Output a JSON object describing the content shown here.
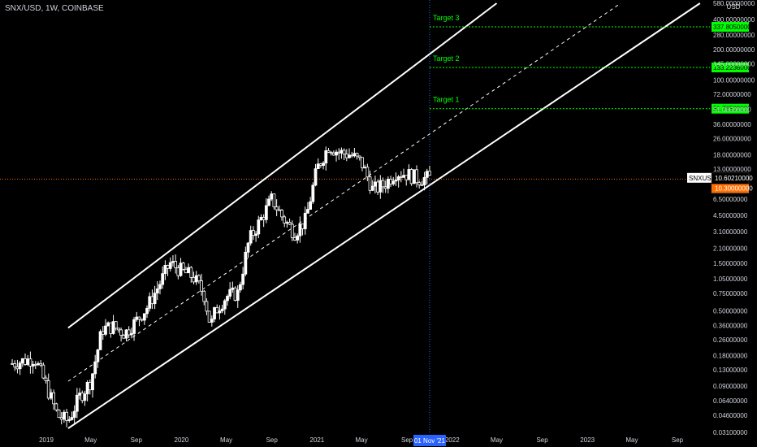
{
  "header": {
    "symbol_line": "SNX/USD, 1W, COINBASE"
  },
  "colors": {
    "background": "#000000",
    "candle": "#ffffff",
    "target": "#00ff00",
    "price_line": "#ff6d00",
    "cursor_line": "#2962ff",
    "axis_text": "#d1d4dc",
    "current_badge": "#ff6d00"
  },
  "chart_data": {
    "type": "candlestick",
    "y_scale": "log",
    "currency_label": "USD",
    "y_ticks": [
      "580.00000000",
      "400.00000000",
      "280.00000000",
      "200.00000000",
      "145.00000000",
      "100.00000000",
      "72.00000000",
      "51.00000000",
      "36.00000000",
      "26.00000000",
      "18.00000000",
      "13.00000000",
      "9.00000000",
      "6.50000000",
      "4.50000000",
      "3.10000000",
      "2.10000000",
      "1.50000000",
      "1.05000000",
      "0.75000000",
      "0.50000000",
      "0.36000000",
      "0.26000000",
      "0.18000000",
      "0.13000000",
      "0.09000000",
      "0.06400000",
      "0.04600000",
      "0.03100000"
    ],
    "y_tick_values": [
      580,
      400,
      280,
      200,
      145,
      100,
      72,
      51,
      36,
      26,
      18,
      13,
      9,
      6.5,
      4.5,
      3.1,
      2.1,
      1.5,
      1.05,
      0.75,
      0.5,
      0.36,
      0.26,
      0.18,
      0.13,
      0.09,
      0.064,
      0.046,
      0.031
    ],
    "x_ticks": [
      "2019",
      "May",
      "Sep",
      "2020",
      "May",
      "Sep",
      "2021",
      "May",
      "Sep",
      "2022",
      "May",
      "Sep",
      "2023",
      "May",
      "Sep"
    ],
    "x_tick_dates": [
      "2019-01-01",
      "2019-05-01",
      "2019-09-01",
      "2020-01-01",
      "2020-05-01",
      "2020-09-01",
      "2021-01-01",
      "2021-05-01",
      "2021-09-01",
      "2022-01-01",
      "2022-05-01",
      "2022-09-01",
      "2023-01-01",
      "2023-05-01",
      "2023-09-01"
    ],
    "cursor_date_label": "01 Nov '21",
    "cursor_date": "2021-11-01",
    "targets": [
      {
        "label": "Target 3",
        "price": 337.805,
        "price_label": "337.80500000"
      },
      {
        "label": "Target 2",
        "price": 133.2236,
        "price_label": "133.22360000"
      },
      {
        "label": "Target 1",
        "price": 51.765,
        "price_label": "51.76500000"
      }
    ],
    "current": {
      "symbol": "SNXUSD",
      "price": 10.6021,
      "price_label": "10.60210000",
      "countdown": "5d 18h",
      "line_price": 10.3,
      "line_price_label": "10.30000000"
    },
    "channel": {
      "upper": [
        [
          "2019-03-01",
          0.34
        ],
        [
          "2022-05-01",
          580
        ]
      ],
      "lower": [
        [
          "2019-03-01",
          0.034
        ],
        [
          "2023-11-01",
          580
        ]
      ],
      "mid": [
        [
          "2019-03-01",
          0.1
        ],
        [
          "2023-04-01",
          580
        ]
      ]
    },
    "weekly_closes": [
      [
        "2018-10-01",
        0.15
      ],
      [
        "2018-12-01",
        0.17
      ],
      [
        "2019-01-01",
        0.09
      ],
      [
        "2019-02-01",
        0.045
      ],
      [
        "2019-03-01",
        0.04
      ],
      [
        "2019-04-01",
        0.07
      ],
      [
        "2019-05-01",
        0.1
      ],
      [
        "2019-06-01",
        0.33
      ],
      [
        "2019-07-01",
        0.35
      ],
      [
        "2019-08-01",
        0.3
      ],
      [
        "2019-09-01",
        0.4
      ],
      [
        "2019-10-01",
        0.55
      ],
      [
        "2019-11-01",
        0.9
      ],
      [
        "2019-12-01",
        1.5
      ],
      [
        "2020-01-01",
        1.25
      ],
      [
        "2020-02-01",
        1.1
      ],
      [
        "2020-03-01",
        0.75
      ],
      [
        "2020-03-20",
        0.35
      ],
      [
        "2020-04-01",
        0.5
      ],
      [
        "2020-05-01",
        0.7
      ],
      [
        "2020-06-01",
        0.75
      ],
      [
        "2020-07-01",
        2.5
      ],
      [
        "2020-08-01",
        4
      ],
      [
        "2020-09-01",
        6.5
      ],
      [
        "2020-10-01",
        4.2
      ],
      [
        "2020-11-01",
        3
      ],
      [
        "2020-12-01",
        4
      ],
      [
        "2021-01-01",
        13
      ],
      [
        "2021-02-01",
        22
      ],
      [
        "2021-03-01",
        19
      ],
      [
        "2021-04-01",
        18
      ],
      [
        "2021-05-01",
        15
      ],
      [
        "2021-06-01",
        8
      ],
      [
        "2021-07-01",
        9
      ],
      [
        "2021-08-01",
        12
      ],
      [
        "2021-09-01",
        11.5
      ],
      [
        "2021-10-01",
        10.3
      ],
      [
        "2021-11-01",
        10.6
      ]
    ]
  }
}
